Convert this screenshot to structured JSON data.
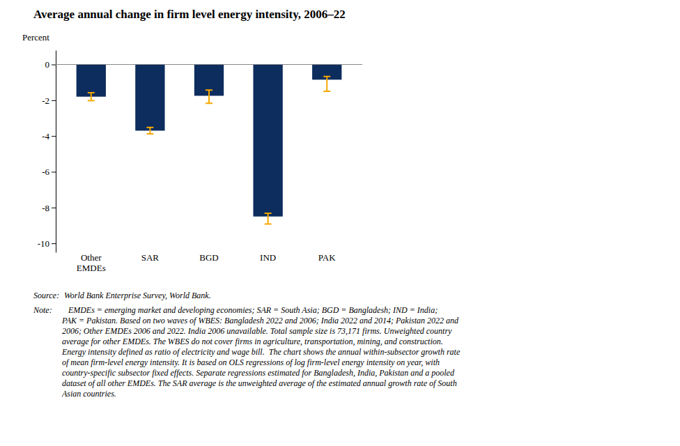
{
  "chart_data": {
    "type": "bar",
    "title": "Average annual change in firm level energy intensity, 2006–22",
    "ylabel": "Percent",
    "categories": [
      "Other\nEMDEs",
      "SAR",
      "BGD",
      "IND",
      "PAK"
    ],
    "values": [
      -1.8,
      -3.7,
      -1.75,
      -8.5,
      -0.85
    ],
    "color": "#0d2d5e",
    "error_bars": {
      "lower": [
        0.22,
        0.18,
        0.42,
        0.42,
        0.65
      ],
      "upper": [
        0.22,
        0.18,
        0.32,
        0.18,
        0.18
      ],
      "color": "#f5a800"
    },
    "ylim": [
      -10.5,
      0.8
    ],
    "yticks": [
      0,
      -2,
      -4,
      -6,
      -8,
      -10
    ],
    "grid": false,
    "annotations": [
      {
        "label": "Source:",
        "text": " World Bank Enterprise Survey, World Bank."
      },
      {
        "label": "Note:",
        "text": "   EMDEs = emerging market and developing economies; SAR = South Asia; BGD = Bangladesh; IND = India;\nPAK = Pakistan. Based on two waves of WBES: Bangladesh 2022 and 2006; India 2022 and 2014; Pakistan 2022 and\n2006; Other EMDEs 2006 and 2022. India 2006 unavailable. Total sample size is 73,171 firms. Unweighted country\naverage for other EMDEs. The WBES do not cover firms in agriculture, transportation, mining, and construction.\nEnergy intensity defined as ratio of electricity and wage bill.  The chart shows the annual within-subsector growth rate\nof mean firm-level energy intensity. It is based on OLS regressions of log firm-level energy intensity on year, with\ncountry-specific subsector fixed effects. Separate regressions estimated for Bangladesh, India, Pakistan and a pooled\ndataset of all other EMDEs. The SAR average is the unweighted average of the estimated annual growth rate of South\nAsian countries."
      }
    ]
  }
}
